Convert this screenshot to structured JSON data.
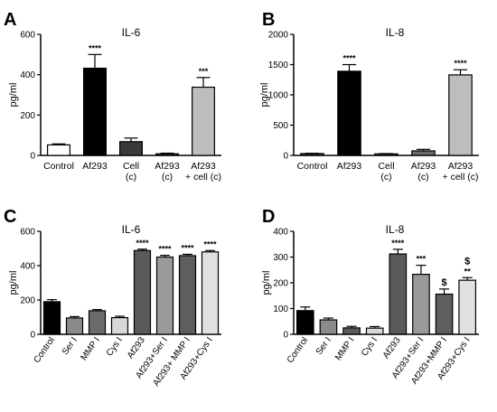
{
  "chart_data": [
    {
      "panel_letter": "A",
      "title": "IL-6",
      "type": "bar",
      "ylabel": "pg/ml",
      "ylim": [
        0,
        600
      ],
      "yticks": [
        0,
        200,
        400,
        600
      ],
      "categories": [
        "Control",
        "Af293",
        "Cell\n(c)",
        "Af293\n(c)",
        "Af293\n+ cell (c)"
      ],
      "values": [
        52,
        432,
        68,
        8,
        338
      ],
      "errors": [
        5,
        68,
        18,
        3,
        48
      ],
      "colors": [
        "#ffffff",
        "#000000",
        "#3a3a3a",
        "#3a3a3a",
        "#bdbdbd"
      ],
      "annotations": [
        "",
        "****",
        "",
        "",
        "***"
      ],
      "label_style": "horizontal"
    },
    {
      "panel_letter": "B",
      "title": "IL-8",
      "type": "bar",
      "ylabel": "pg/ml",
      "ylim": [
        0,
        2000
      ],
      "yticks": [
        0,
        500,
        1000,
        1500,
        2000
      ],
      "categories": [
        "Control",
        "Af293",
        "Cell\n(c)",
        "Af293\n(c)",
        "Af293\n+ cell (c)"
      ],
      "values": [
        30,
        1390,
        25,
        75,
        1330
      ],
      "errors": [
        5,
        110,
        5,
        25,
        85
      ],
      "colors": [
        "#3a3a3a",
        "#000000",
        "#3a3a3a",
        "#6b6b6b",
        "#bdbdbd"
      ],
      "annotations": [
        "",
        "****",
        "",
        "",
        "****"
      ],
      "label_style": "horizontal"
    },
    {
      "panel_letter": "C",
      "title": "IL-6",
      "type": "bar",
      "ylabel": "pg/ml",
      "ylim": [
        0,
        600
      ],
      "yticks": [
        0,
        200,
        400,
        600
      ],
      "categories": [
        "Control",
        "Ser I",
        "MMP I",
        "Cys I",
        "Af293",
        "Af293+Ser I",
        "Af293+ MMP I",
        "Af293+Cys I"
      ],
      "values": [
        190,
        95,
        137,
        97,
        488,
        450,
        458,
        480
      ],
      "errors": [
        12,
        8,
        7,
        8,
        8,
        10,
        8,
        8
      ],
      "colors": [
        "#000000",
        "#8a8a8a",
        "#6b6b6b",
        "#d8d8d8",
        "#5a5a5a",
        "#9a9a9a",
        "#5e5e5e",
        "#e0e0e0"
      ],
      "annotations": [
        "",
        "",
        "",
        "",
        "****",
        "****",
        "****",
        "****"
      ],
      "label_style": "rotated"
    },
    {
      "panel_letter": "D",
      "title": "IL-8",
      "type": "bar",
      "ylabel": "pg/ml",
      "ylim": [
        0,
        400
      ],
      "yticks": [
        0,
        100,
        200,
        300,
        400
      ],
      "categories": [
        "Control",
        "Ser I",
        "MMP I",
        "Cys I",
        "Af293",
        "Af293+Ser I",
        "Af293+MMP I",
        "Af293+Cys I"
      ],
      "values": [
        92,
        56,
        25,
        24,
        312,
        233,
        156,
        210
      ],
      "errors": [
        14,
        7,
        6,
        6,
        18,
        35,
        20,
        10
      ],
      "colors": [
        "#000000",
        "#8a8a8a",
        "#5a5a5a",
        "#d8d8d8",
        "#5a5a5a",
        "#9a9a9a",
        "#5e5e5e",
        "#e0e0e0"
      ],
      "annotations": [
        "",
        "",
        "",
        "",
        "****",
        "***",
        "$",
        "$\n**"
      ],
      "label_style": "rotated"
    }
  ]
}
